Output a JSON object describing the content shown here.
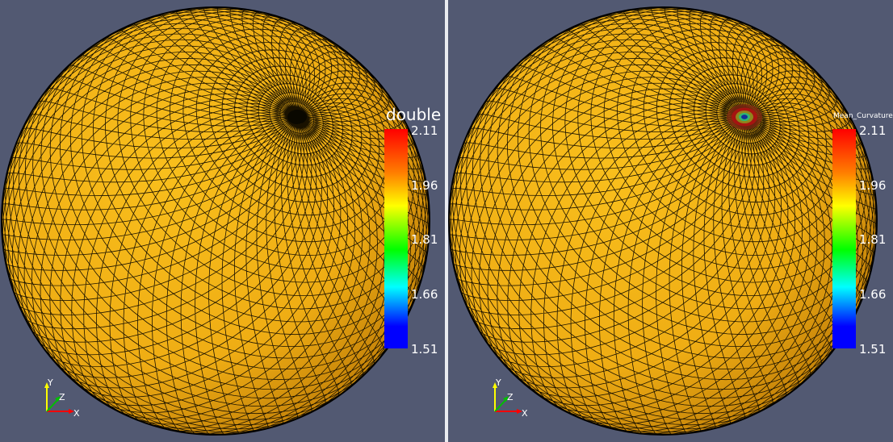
{
  "views": [
    {
      "colorbar": {
        "title": "double",
        "ticks": [
          "2.11",
          "1.96",
          "1.81",
          "1.66",
          "1.51"
        ],
        "min": 1.51,
        "max": 2.11
      },
      "axes": {
        "x": "X",
        "y": "Y",
        "z": "Z"
      },
      "hotspot": "dark"
    },
    {
      "colorbar": {
        "title": "Mean_Curvature",
        "ticks": [
          "2.11",
          "1.96",
          "1.81",
          "1.66",
          "1.51"
        ],
        "min": 1.51,
        "max": 2.11
      },
      "axes": {
        "x": "X",
        "y": "Y",
        "z": "Z"
      },
      "hotspot": "curvature"
    }
  ],
  "colors": {
    "background": "#525972",
    "surface": "#f2b316",
    "mesh": "#000000",
    "divider": "#e9ebf0"
  }
}
